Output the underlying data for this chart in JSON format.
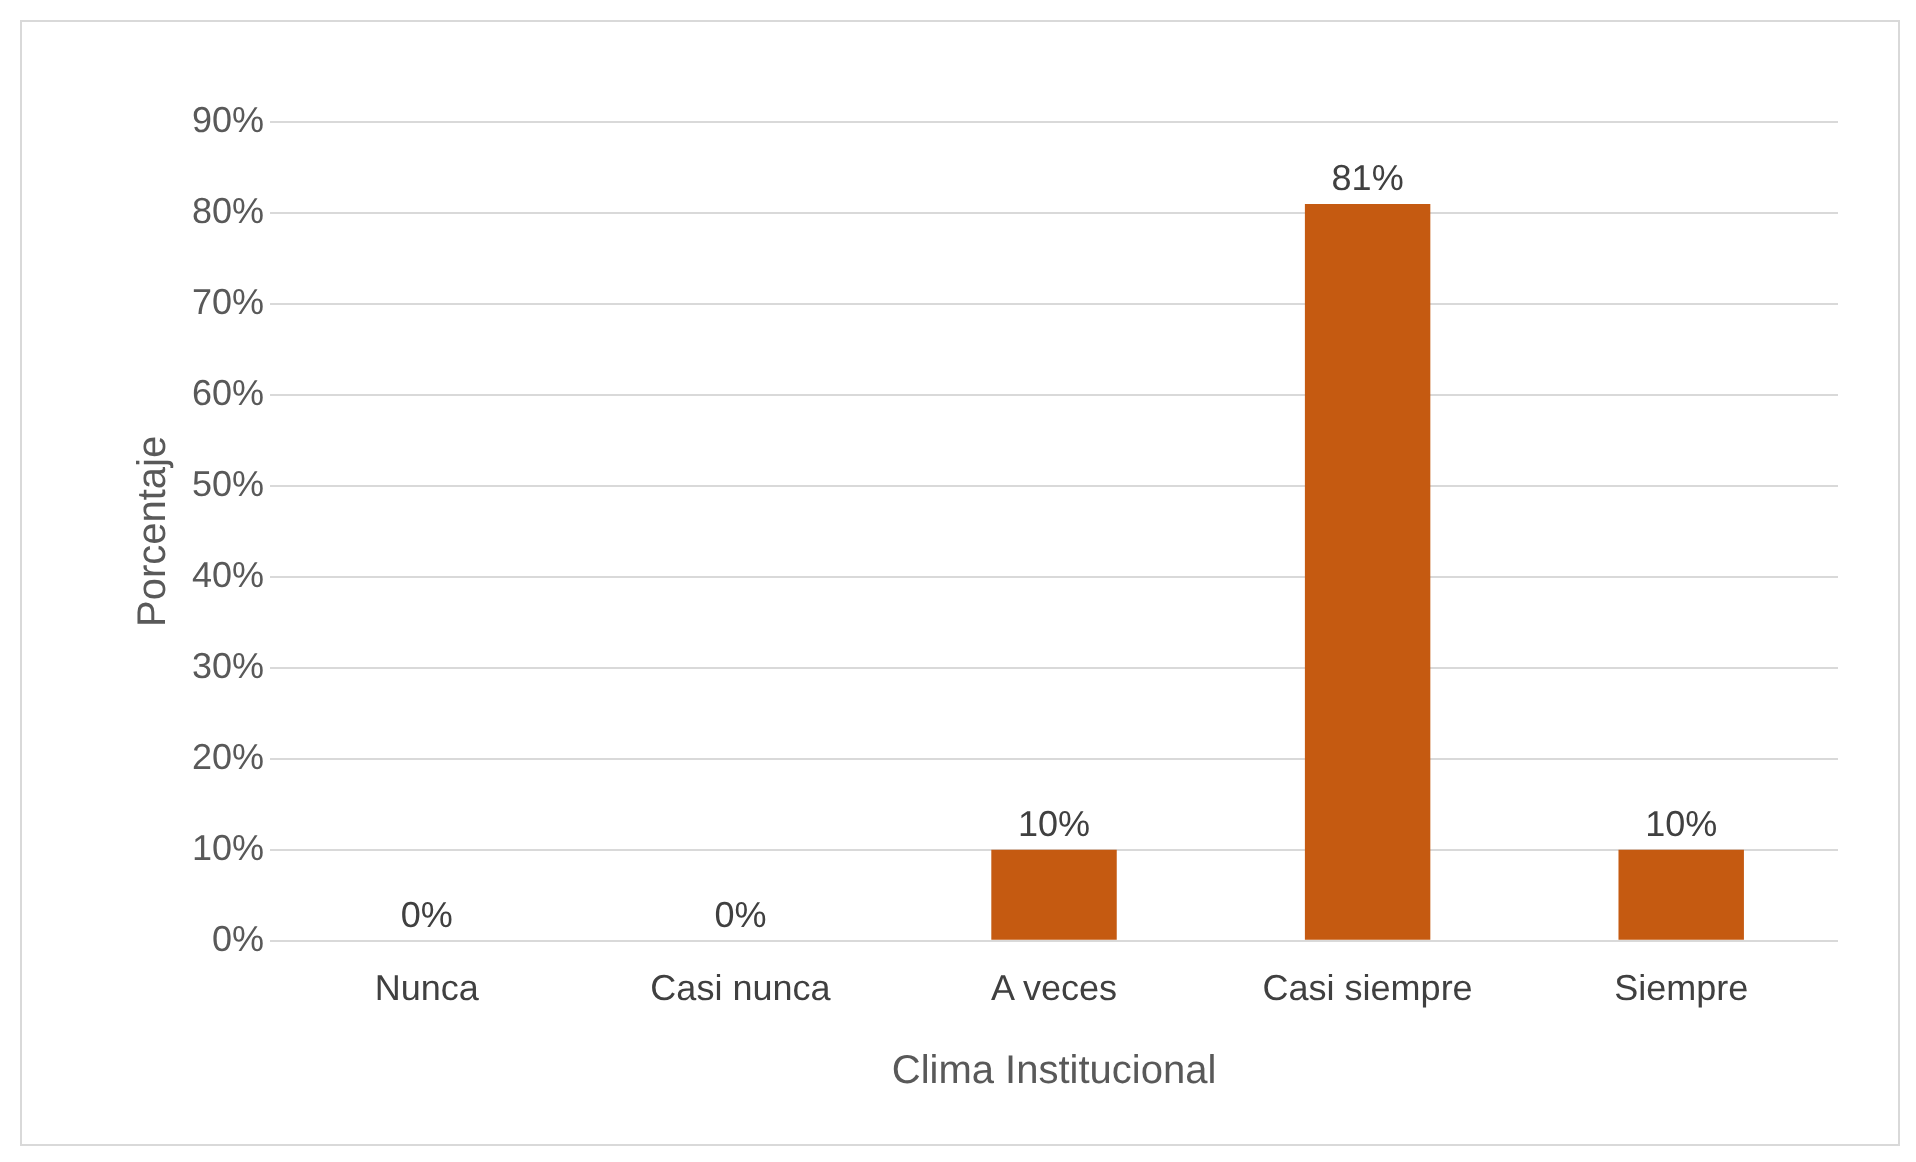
{
  "chart_data": {
    "type": "bar",
    "xlabel": "Clima Institucional",
    "ylabel": "Porcentaje",
    "categories": [
      "Nunca",
      "Casi nunca",
      "A veces",
      "Casi siempre",
      "Siempre"
    ],
    "values": [
      0,
      0,
      10,
      81,
      10
    ],
    "value_labels": [
      "0%",
      "0%",
      "10%",
      "81%",
      "10%"
    ],
    "color": "#c55a11",
    "ylim": [
      0,
      90
    ],
    "yticks": [
      {
        "value": 0,
        "label": "0%"
      },
      {
        "value": 10,
        "label": "10%"
      },
      {
        "value": 20,
        "label": "20%"
      },
      {
        "value": 30,
        "label": "30%"
      },
      {
        "value": 40,
        "label": "40%"
      },
      {
        "value": 50,
        "label": "50%"
      },
      {
        "value": 60,
        "label": "60%"
      },
      {
        "value": 70,
        "label": "70%"
      },
      {
        "value": 80,
        "label": "80%"
      },
      {
        "value": 90,
        "label": "90%"
      }
    ],
    "grid": true,
    "legend": false
  }
}
